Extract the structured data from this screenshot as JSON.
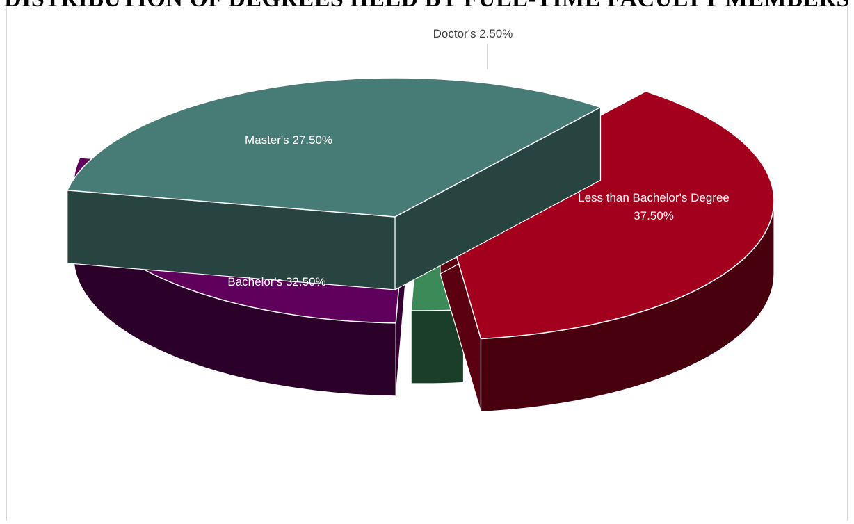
{
  "chart_data": {
    "type": "pie",
    "title": "DISTRIBUTION OF DEGREES HELD BY FULL-TIME FACULTY MEMBERS",
    "categories": [
      "Less than Bachelor's Degree",
      "Doctor's",
      "Master's",
      "Bachelor's"
    ],
    "values": [
      37.5,
      2.5,
      27.5,
      32.5
    ],
    "data_labels": [
      "Less than Bachelor's Degree 37.50%",
      "Doctor's 2.50%",
      "Master's 27.50%",
      "Bachelor's  32.50%"
    ],
    "colors": {
      "Less than Bachelor's Degree": "#a3001e",
      "Doctor's": "#3c8a58",
      "Master's": "#5f005c",
      "Bachelor's": "#477b76"
    },
    "style": "3d-exploded-pie",
    "legend": "none"
  }
}
